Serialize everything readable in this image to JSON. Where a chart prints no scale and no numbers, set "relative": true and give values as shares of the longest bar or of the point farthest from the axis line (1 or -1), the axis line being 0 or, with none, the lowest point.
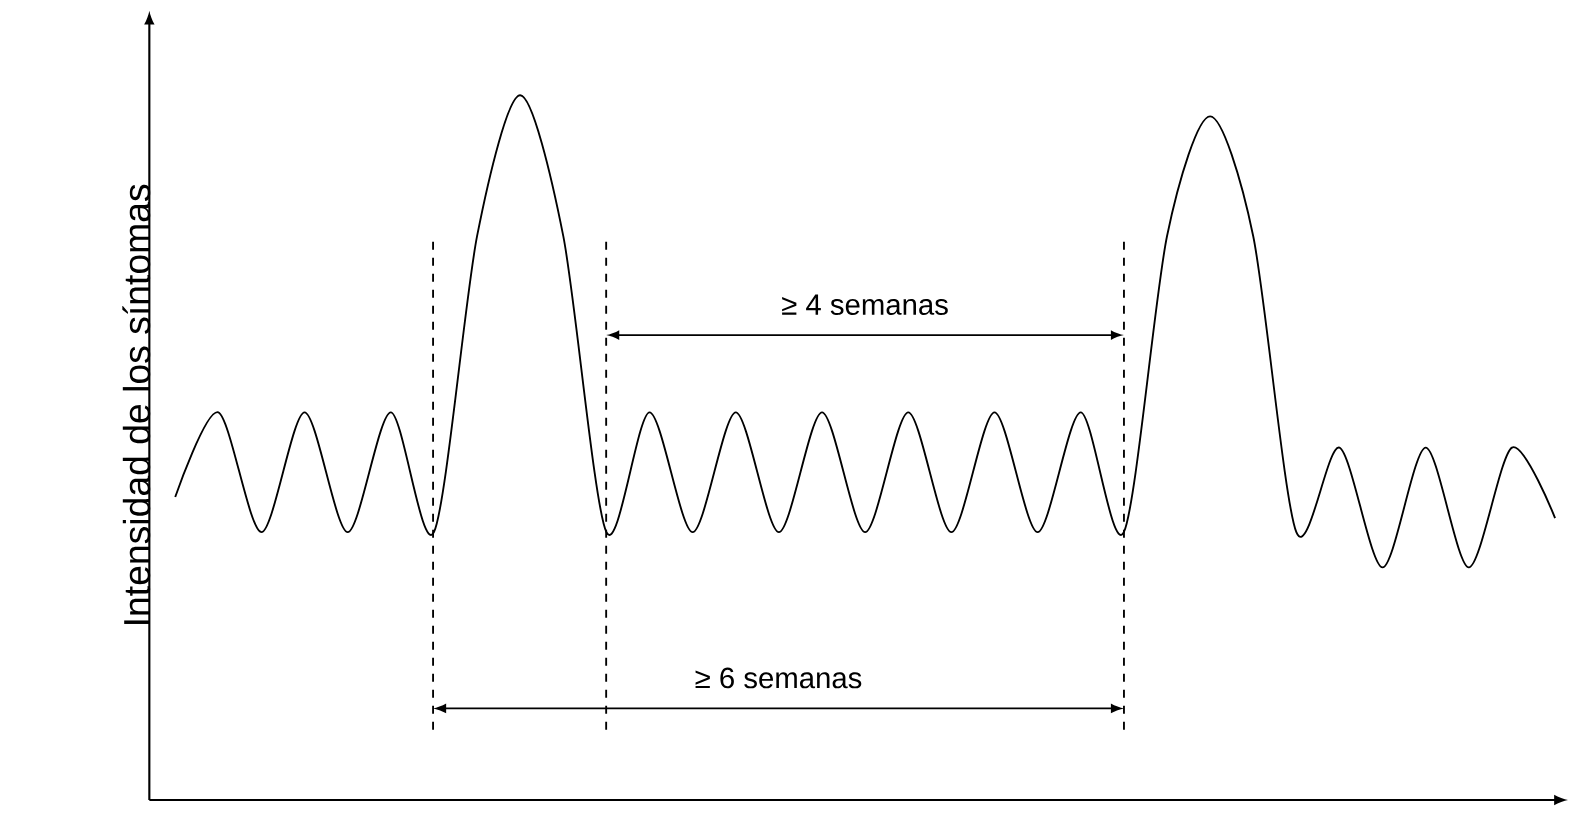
{
  "chart_data": {
    "type": "line",
    "relative": true,
    "ylabel": "Intensidad de los síntomas",
    "tick_labels": false,
    "marker": "none",
    "line_style": "solid",
    "categories": [
      null,
      null,
      null,
      null,
      null,
      null,
      null,
      null,
      null,
      null,
      null,
      null,
      null,
      null,
      null,
      null,
      null,
      null,
      null,
      null,
      null,
      null,
      null,
      null,
      null,
      null,
      null,
      null,
      null,
      null,
      null,
      null,
      null
    ],
    "series": [
      {
        "color": "#000000",
        "values": [
          0.43,
          0.55,
          0.38,
          0.55,
          0.38,
          0.55,
          0.38,
          0.8,
          1.0,
          0.8,
          0.38,
          0.55,
          0.38,
          0.55,
          0.38,
          0.55,
          0.38,
          0.55,
          0.38,
          0.55,
          0.38,
          0.55,
          0.38,
          0.8,
          0.97,
          0.8,
          0.38,
          0.5,
          0.33,
          0.5,
          0.33,
          0.5,
          0.4
        ]
      }
    ],
    "annotations": [
      "≥ 4 semanas",
      "≥ 6 semanas"
    ]
  }
}
